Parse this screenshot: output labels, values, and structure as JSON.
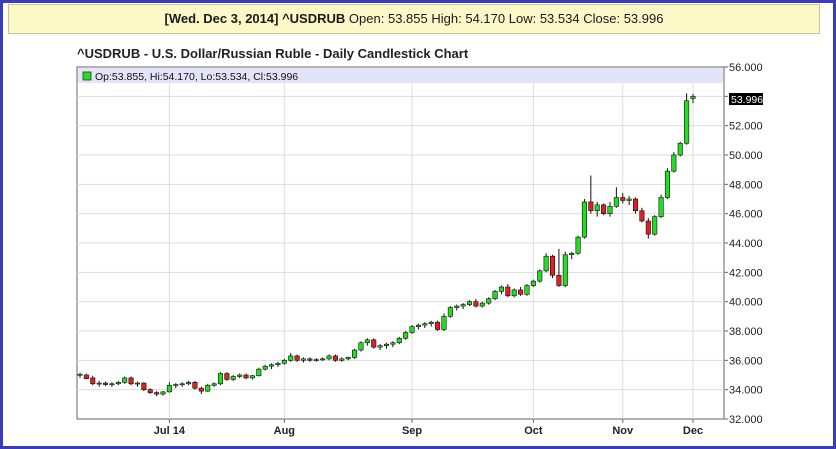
{
  "info_bar": {
    "date": "[Wed. Dec 3, 2014]",
    "symbol": "^USDRUB",
    "open_label": "Open:",
    "open": "53.855",
    "high_label": "High:",
    "high": "54.170",
    "low_label": "Low:",
    "low": "53.534",
    "close_label": "Close:",
    "close": "53.996"
  },
  "chart_title": "^USDRUB - U.S. Dollar/Russian Ruble - Daily Candlestick Chart",
  "legend_text": "Op:53.855, Hi:54.170, Lo:53.534, Cl:53.996",
  "last_price_label": "53.996",
  "colors": {
    "frame": "#3b3bbd",
    "info_bg": "#fcf8c8",
    "up": "#22dd22",
    "down": "#dd2020",
    "legend_band": "#e4e4f8",
    "grid": "#dddddd",
    "last_price_bg": "#000000"
  },
  "chart_data": {
    "type": "candlestick",
    "title": "^USDRUB - U.S. Dollar/Russian Ruble - Daily Candlestick Chart",
    "ylim": [
      32,
      56
    ],
    "y_ticks": [
      "56.000",
      "54.000",
      "52.000",
      "50.000",
      "48.000",
      "46.000",
      "44.000",
      "42.000",
      "40.000",
      "38.000",
      "36.000",
      "34.000",
      "32.000"
    ],
    "x_ticks": [
      "Jul 14",
      "Aug",
      "Sep",
      "Oct",
      "Nov",
      "Dec"
    ],
    "last_close": 53.996,
    "grid": true,
    "candles": [
      {
        "o": 35.0,
        "h": 35.15,
        "l": 34.8,
        "c": 35.05
      },
      {
        "o": 35.0,
        "h": 35.1,
        "l": 34.7,
        "c": 34.75
      },
      {
        "o": 34.8,
        "h": 34.95,
        "l": 34.3,
        "c": 34.4
      },
      {
        "o": 34.4,
        "h": 34.6,
        "l": 34.2,
        "c": 34.45
      },
      {
        "o": 34.45,
        "h": 34.55,
        "l": 34.25,
        "c": 34.35
      },
      {
        "o": 34.35,
        "h": 34.5,
        "l": 34.2,
        "c": 34.4
      },
      {
        "o": 34.4,
        "h": 34.6,
        "l": 34.3,
        "c": 34.5
      },
      {
        "o": 34.5,
        "h": 34.9,
        "l": 34.4,
        "c": 34.8
      },
      {
        "o": 34.8,
        "h": 34.9,
        "l": 34.3,
        "c": 34.4
      },
      {
        "o": 34.4,
        "h": 34.55,
        "l": 34.2,
        "c": 34.45
      },
      {
        "o": 34.45,
        "h": 34.5,
        "l": 33.9,
        "c": 34.0
      },
      {
        "o": 34.0,
        "h": 34.1,
        "l": 33.7,
        "c": 33.8
      },
      {
        "o": 33.8,
        "h": 33.9,
        "l": 33.55,
        "c": 33.7
      },
      {
        "o": 33.7,
        "h": 33.9,
        "l": 33.6,
        "c": 33.85
      },
      {
        "o": 33.85,
        "h": 34.5,
        "l": 33.8,
        "c": 34.3
      },
      {
        "o": 34.3,
        "h": 34.45,
        "l": 34.1,
        "c": 34.35
      },
      {
        "o": 34.35,
        "h": 34.5,
        "l": 34.2,
        "c": 34.4
      },
      {
        "o": 34.4,
        "h": 34.6,
        "l": 34.3,
        "c": 34.5
      },
      {
        "o": 34.5,
        "h": 34.6,
        "l": 34.0,
        "c": 34.1
      },
      {
        "o": 34.1,
        "h": 34.2,
        "l": 33.7,
        "c": 33.9
      },
      {
        "o": 33.9,
        "h": 34.4,
        "l": 33.85,
        "c": 34.3
      },
      {
        "o": 34.3,
        "h": 34.5,
        "l": 34.2,
        "c": 34.4
      },
      {
        "o": 34.4,
        "h": 35.2,
        "l": 34.3,
        "c": 35.1
      },
      {
        "o": 35.1,
        "h": 35.2,
        "l": 34.6,
        "c": 34.7
      },
      {
        "o": 34.7,
        "h": 35.0,
        "l": 34.6,
        "c": 34.9
      },
      {
        "o": 34.9,
        "h": 35.1,
        "l": 34.8,
        "c": 35.0
      },
      {
        "o": 35.0,
        "h": 35.1,
        "l": 34.7,
        "c": 34.8
      },
      {
        "o": 34.8,
        "h": 35.0,
        "l": 34.7,
        "c": 34.95
      },
      {
        "o": 34.95,
        "h": 35.5,
        "l": 34.9,
        "c": 35.4
      },
      {
        "o": 35.4,
        "h": 35.7,
        "l": 35.3,
        "c": 35.6
      },
      {
        "o": 35.6,
        "h": 35.8,
        "l": 35.4,
        "c": 35.7
      },
      {
        "o": 35.7,
        "h": 35.9,
        "l": 35.55,
        "c": 35.8
      },
      {
        "o": 35.8,
        "h": 36.1,
        "l": 35.7,
        "c": 36.0
      },
      {
        "o": 36.0,
        "h": 36.5,
        "l": 35.9,
        "c": 36.3
      },
      {
        "o": 36.3,
        "h": 36.4,
        "l": 35.9,
        "c": 36.0
      },
      {
        "o": 36.0,
        "h": 36.2,
        "l": 35.85,
        "c": 36.1
      },
      {
        "o": 36.1,
        "h": 36.2,
        "l": 35.9,
        "c": 36.0
      },
      {
        "o": 36.0,
        "h": 36.15,
        "l": 35.9,
        "c": 36.05
      },
      {
        "o": 36.05,
        "h": 36.2,
        "l": 35.95,
        "c": 36.1
      },
      {
        "o": 36.1,
        "h": 36.4,
        "l": 36.0,
        "c": 36.3
      },
      {
        "o": 36.3,
        "h": 36.4,
        "l": 35.9,
        "c": 36.0
      },
      {
        "o": 36.0,
        "h": 36.2,
        "l": 35.9,
        "c": 36.1
      },
      {
        "o": 36.1,
        "h": 36.25,
        "l": 36.0,
        "c": 36.2
      },
      {
        "o": 36.2,
        "h": 36.8,
        "l": 36.1,
        "c": 36.7
      },
      {
        "o": 36.7,
        "h": 37.3,
        "l": 36.6,
        "c": 37.2
      },
      {
        "o": 37.2,
        "h": 37.5,
        "l": 37.0,
        "c": 37.4
      },
      {
        "o": 37.4,
        "h": 37.5,
        "l": 36.8,
        "c": 36.9
      },
      {
        "o": 36.9,
        "h": 37.1,
        "l": 36.7,
        "c": 37.0
      },
      {
        "o": 37.0,
        "h": 37.2,
        "l": 36.8,
        "c": 37.1
      },
      {
        "o": 37.1,
        "h": 37.3,
        "l": 36.9,
        "c": 37.2
      },
      {
        "o": 37.2,
        "h": 37.6,
        "l": 37.1,
        "c": 37.5
      },
      {
        "o": 37.5,
        "h": 38.0,
        "l": 37.4,
        "c": 37.9
      },
      {
        "o": 37.9,
        "h": 38.4,
        "l": 37.8,
        "c": 38.3
      },
      {
        "o": 38.3,
        "h": 38.5,
        "l": 38.1,
        "c": 38.4
      },
      {
        "o": 38.4,
        "h": 38.6,
        "l": 38.2,
        "c": 38.5
      },
      {
        "o": 38.5,
        "h": 38.7,
        "l": 38.3,
        "c": 38.6
      },
      {
        "o": 38.6,
        "h": 38.7,
        "l": 38.0,
        "c": 38.1
      },
      {
        "o": 38.1,
        "h": 39.2,
        "l": 38.0,
        "c": 39.0
      },
      {
        "o": 39.0,
        "h": 39.7,
        "l": 38.9,
        "c": 39.6
      },
      {
        "o": 39.6,
        "h": 39.8,
        "l": 39.4,
        "c": 39.7
      },
      {
        "o": 39.7,
        "h": 39.9,
        "l": 39.5,
        "c": 39.8
      },
      {
        "o": 39.8,
        "h": 40.1,
        "l": 39.7,
        "c": 40.0
      },
      {
        "o": 40.0,
        "h": 40.2,
        "l": 39.6,
        "c": 39.7
      },
      {
        "o": 39.7,
        "h": 40.0,
        "l": 39.6,
        "c": 39.9
      },
      {
        "o": 39.9,
        "h": 40.3,
        "l": 39.8,
        "c": 40.2
      },
      {
        "o": 40.2,
        "h": 40.8,
        "l": 40.1,
        "c": 40.7
      },
      {
        "o": 40.7,
        "h": 41.1,
        "l": 40.5,
        "c": 41.0
      },
      {
        "o": 41.0,
        "h": 41.2,
        "l": 40.3,
        "c": 40.4
      },
      {
        "o": 40.4,
        "h": 40.9,
        "l": 40.3,
        "c": 40.8
      },
      {
        "o": 40.8,
        "h": 41.0,
        "l": 40.4,
        "c": 40.5
      },
      {
        "o": 40.5,
        "h": 41.2,
        "l": 40.4,
        "c": 41.1
      },
      {
        "o": 41.1,
        "h": 41.5,
        "l": 41.0,
        "c": 41.4
      },
      {
        "o": 41.4,
        "h": 42.2,
        "l": 41.3,
        "c": 42.1
      },
      {
        "o": 42.1,
        "h": 43.3,
        "l": 42.0,
        "c": 43.1
      },
      {
        "o": 43.1,
        "h": 43.2,
        "l": 41.6,
        "c": 41.8
      },
      {
        "o": 41.8,
        "h": 43.6,
        "l": 41.0,
        "c": 41.1
      },
      {
        "o": 41.1,
        "h": 43.4,
        "l": 41.0,
        "c": 43.2
      },
      {
        "o": 43.2,
        "h": 43.4,
        "l": 42.9,
        "c": 43.3
      },
      {
        "o": 43.3,
        "h": 44.5,
        "l": 43.2,
        "c": 44.4
      },
      {
        "o": 44.4,
        "h": 47.0,
        "l": 44.3,
        "c": 46.8
      },
      {
        "o": 46.8,
        "h": 48.6,
        "l": 46.0,
        "c": 46.2
      },
      {
        "o": 46.2,
        "h": 46.8,
        "l": 45.8,
        "c": 46.6
      },
      {
        "o": 46.6,
        "h": 46.7,
        "l": 45.9,
        "c": 46.0
      },
      {
        "o": 46.0,
        "h": 46.8,
        "l": 45.8,
        "c": 46.5
      },
      {
        "o": 46.5,
        "h": 47.8,
        "l": 46.4,
        "c": 47.1
      },
      {
        "o": 47.1,
        "h": 47.4,
        "l": 46.7,
        "c": 46.9
      },
      {
        "o": 46.9,
        "h": 47.2,
        "l": 46.6,
        "c": 47.0
      },
      {
        "o": 47.0,
        "h": 47.1,
        "l": 46.0,
        "c": 46.2
      },
      {
        "o": 46.2,
        "h": 46.4,
        "l": 45.4,
        "c": 45.5
      },
      {
        "o": 45.5,
        "h": 45.7,
        "l": 44.3,
        "c": 44.6
      },
      {
        "o": 44.6,
        "h": 45.9,
        "l": 44.5,
        "c": 45.8
      },
      {
        "o": 45.8,
        "h": 47.3,
        "l": 45.7,
        "c": 47.1
      },
      {
        "o": 47.1,
        "h": 49.1,
        "l": 47.0,
        "c": 48.9
      },
      {
        "o": 48.9,
        "h": 50.2,
        "l": 48.8,
        "c": 50.0
      },
      {
        "o": 50.0,
        "h": 50.9,
        "l": 49.9,
        "c": 50.8
      },
      {
        "o": 50.8,
        "h": 54.2,
        "l": 50.7,
        "c": 53.7
      },
      {
        "o": 53.855,
        "h": 54.17,
        "l": 53.534,
        "c": 53.996
      }
    ]
  }
}
